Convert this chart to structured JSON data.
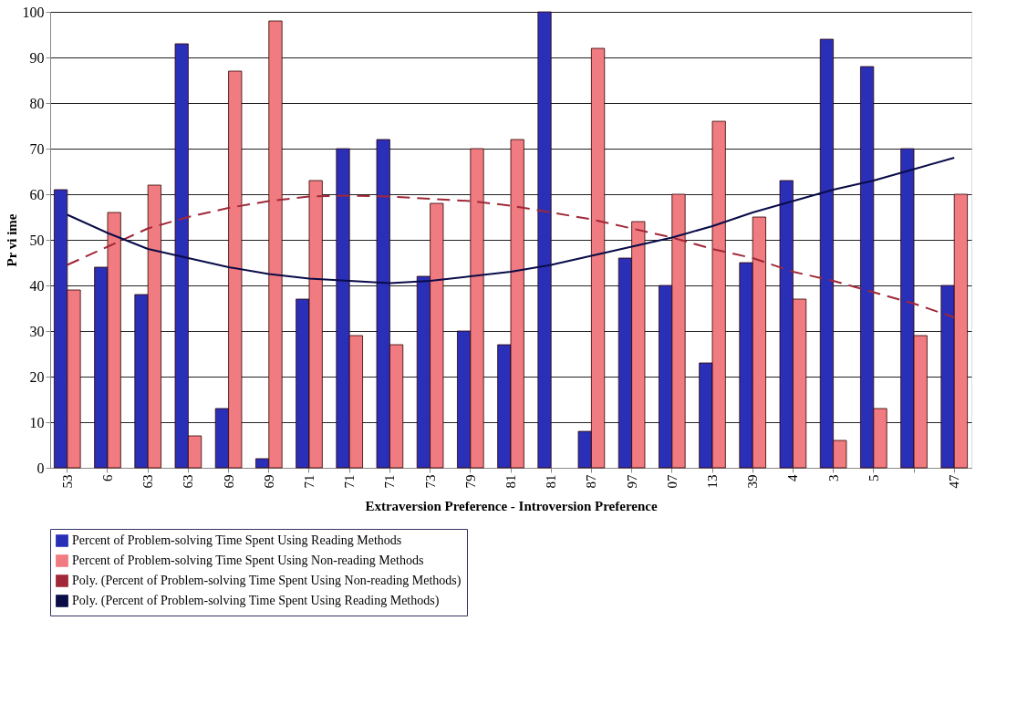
{
  "chart_data": {
    "type": "bar",
    "xlabel": "Extraversion Preference - Introversion Preference",
    "ylabel": "Pr      vi      ime",
    "categories": [
      "53",
      "6",
      "63",
      "63",
      "69",
      "69",
      "71",
      "71",
      "71",
      "73",
      "79",
      "81",
      "81",
      "87",
      "97",
      "07",
      "13",
      "39",
      "4",
      "3",
      "5",
      null,
      "47"
    ],
    "series": [
      {
        "name": "Percent of Problem-solving Time Spent Using Reading Methods",
        "color": "#2a2fb8",
        "values": [
          61,
          44,
          38,
          93,
          13,
          2,
          37,
          70,
          72,
          42,
          30,
          27,
          100,
          8,
          46,
          40,
          23,
          45,
          63,
          94,
          88,
          70,
          40
        ]
      },
      {
        "name": "Percent of Problem-solving Time Spent Using Non-reading Methods",
        "color": "#f07b80",
        "values": [
          39,
          56,
          62,
          7,
          87,
          98,
          63,
          29,
          27,
          58,
          70,
          72,
          null,
          92,
          54,
          60,
          76,
          55,
          37,
          6,
          13,
          29,
          60
        ]
      },
      {
        "name": "Poly. (Percent of Problem-solving Time Spent Using Non-reading Methods)",
        "type": "line",
        "line_style": "dashed",
        "color": "#a02838",
        "values": [
          44.5,
          48.5,
          52.5,
          55,
          57,
          58.5,
          59.5,
          59.7,
          59.5,
          59,
          58.5,
          57.5,
          56,
          54.5,
          52.5,
          50.5,
          48,
          46,
          43,
          41,
          38.5,
          36,
          33
        ]
      },
      {
        "name": "Poly. (Percent of Problem-solving Time Spent Using Reading Methods)",
        "type": "line",
        "line_style": "solid",
        "color": "#0a0c48",
        "values": [
          55.5,
          51.5,
          48,
          46,
          44,
          42.5,
          41.5,
          41,
          40.5,
          41,
          42,
          43,
          44.5,
          46.5,
          48.5,
          50.5,
          53,
          56,
          58.5,
          61,
          63,
          65.5,
          68
        ]
      }
    ],
    "ylim": [
      0,
      100
    ],
    "yticks": [
      0,
      10,
      20,
      30,
      40,
      50,
      60,
      70,
      80,
      90,
      100
    ],
    "grid": "y",
    "legend": "bottom"
  }
}
